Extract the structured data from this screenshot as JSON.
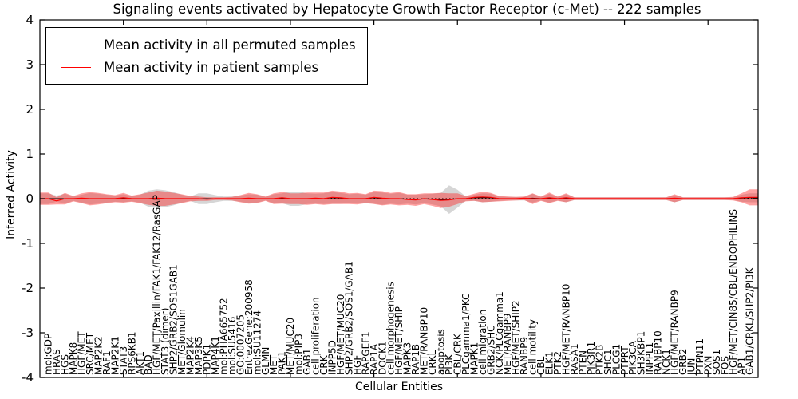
{
  "chart_data": {
    "type": "area",
    "title": "Signaling events activated by Hepatocyte Growth Factor Receptor (c-Met) -- 222 samples",
    "xlabel": "Cellular Entities",
    "ylabel": "Inferred Activity",
    "ylim": [
      -4,
      4
    ],
    "yticks": [
      "4",
      "3",
      "2",
      "1",
      "0",
      "-1",
      "-2",
      "-3",
      "-4"
    ],
    "grid": false,
    "zero_line": "dotted",
    "legend_position": "upper left",
    "categories": [
      "mol:GDP",
      "HRAS",
      "HGS",
      "MAPK8",
      "HGF/MET",
      "SRC/MET",
      "MAP2K2",
      "RAF1",
      "MAP2K1",
      "STAT3",
      "RPS6KB1",
      "AKT1",
      "BAD",
      "HGF/MET/Paxillin/FAK1/FAK12/RasGAP",
      "STAT3 (dimer)",
      "SHP2/GRB2/SOS1GAB1",
      "MET/Glomulin",
      "MAP2K4",
      "MAP3K5",
      "PDPK1",
      "MAP4K1",
      "mol:PHA665752",
      "mol:SU5416",
      "GO:0007205",
      "EntrezGene:200958",
      "mol:SU11274",
      "GLMN",
      "MET",
      "PAK1",
      "MET/MUC20",
      "mol:PIP3",
      "GAB1",
      "cell proliferation",
      "CRK",
      "INPP5D",
      "HGF/MET/MUC20",
      "SHP2/GRB2/SOS1/GAB1",
      "HGF",
      "RAPGEF1",
      "RAP1A",
      "DOCK1",
      "cell morphogenesis",
      "HGF/MET/SHIP",
      "MAPK3",
      "RAP1B",
      "MET/RANBP10",
      "CRKL",
      "apoptosis",
      "PI3K",
      "CBL/CRK",
      "PLCgamma1/PKC",
      "MAPK1",
      "cell migration",
      "GRB2/SHC",
      "NCK/PLCgamma1",
      "MET/RANBP9",
      "HGF/MET/SHIP2",
      "RANBP9",
      "cell motility",
      "CBL",
      "ELK1",
      "PTK2",
      "HGF/MET/RANBP10",
      "RASA1",
      "PTEN",
      "PIK3R1",
      "PTK2B",
      "SHC1",
      "PLCG1",
      "PTPRT",
      "PIK3CA",
      "SH3KBP1",
      "INPPL1",
      "RANBP10",
      "NCK1",
      "HGF/MET/RANBP9",
      "GRB2",
      "JUN",
      "PTPN11",
      "PXN",
      "SOS1",
      "FOS",
      "HGF/MET/CIN85/CBL/ENDOPHILINS",
      "AP1",
      "GAB1/CRKL/SHP2/PI3K"
    ],
    "series": [
      {
        "name": "Mean activity in all permuted samples",
        "color": "#000000",
        "band_color": "rgba(120,120,120,0.30)",
        "means": [
          0,
          0,
          0,
          0,
          0,
          0,
          0,
          0,
          0,
          0.01,
          0,
          0,
          0,
          0.01,
          0,
          0,
          0,
          0,
          0,
          0,
          0,
          0,
          0,
          0,
          0,
          0,
          0,
          0,
          0.01,
          0,
          0,
          0,
          0,
          0,
          0.02,
          0.01,
          0,
          0,
          0,
          0.02,
          0,
          0,
          0,
          -0.01,
          -0.02,
          0,
          -0.01,
          -0.02,
          -0.02,
          0,
          0,
          0.02,
          0.02,
          0.02,
          0,
          0,
          0,
          0,
          0.01,
          0,
          0.01,
          0,
          0.01,
          0,
          0,
          0,
          0,
          0,
          0,
          0,
          0,
          0,
          0,
          0,
          0,
          0,
          0,
          0,
          0,
          0,
          0,
          0,
          0,
          0.01,
          0.02
        ],
        "stds": [
          0.12,
          0.07,
          0.11,
          0.05,
          0.09,
          0.13,
          0.11,
          0.09,
          0.07,
          0.09,
          0.06,
          0.09,
          0.18,
          0.2,
          0.19,
          0.15,
          0.09,
          0.05,
          0.12,
          0.12,
          0.08,
          0.05,
          0.05,
          0.07,
          0.1,
          0.09,
          0.04,
          0.1,
          0.11,
          0.16,
          0.16,
          0.12,
          0.11,
          0.12,
          0.13,
          0.12,
          0.1,
          0.11,
          0.09,
          0.13,
          0.14,
          0.11,
          0.13,
          0.1,
          0.11,
          0.1,
          0.12,
          0.15,
          0.32,
          0.2,
          0.05,
          0.07,
          0.1,
          0.09,
          0.05,
          0.04,
          0.04,
          0.04,
          0.1,
          0.04,
          0.1,
          0.04,
          0.09,
          0.03,
          0.03,
          0.03,
          0.03,
          0.03,
          0.03,
          0.03,
          0.03,
          0.03,
          0.03,
          0.03,
          0.03,
          0.08,
          0.03,
          0.03,
          0.03,
          0.03,
          0.03,
          0.03,
          0.03,
          0.08,
          0.1
        ]
      },
      {
        "name": "Mean activity in patient samples",
        "color": "#ff0000",
        "band_color": "rgba(255,30,30,0.42)",
        "means": [
          0,
          -0.05,
          0,
          0,
          0.01,
          0,
          0,
          0,
          0,
          0.02,
          0,
          0,
          0,
          0.01,
          0,
          0,
          0,
          0,
          0,
          -0.01,
          0,
          0,
          0,
          0,
          0.01,
          0,
          0,
          0,
          0.02,
          0,
          0,
          0,
          0.01,
          0,
          0.03,
          0.02,
          0,
          0,
          0,
          0.03,
          0.01,
          0,
          0,
          -0.02,
          -0.03,
          0,
          -0.02,
          -0.04,
          -0.03,
          0,
          0,
          0.03,
          0.04,
          0.03,
          0,
          0,
          0,
          0.01,
          0,
          0,
          0.02,
          0,
          0.02,
          0,
          0,
          0,
          0,
          0,
          0,
          0,
          0,
          0,
          0,
          0,
          0,
          0.01,
          0,
          0,
          0,
          0,
          0,
          0,
          0,
          0.02,
          0.03
        ],
        "stds": [
          0.14,
          0.08,
          0.13,
          0.06,
          0.11,
          0.15,
          0.13,
          0.1,
          0.08,
          0.11,
          0.07,
          0.1,
          0.14,
          0.17,
          0.16,
          0.13,
          0.1,
          0.06,
          0.05,
          0.04,
          0.03,
          0.03,
          0.04,
          0.08,
          0.12,
          0.1,
          0.05,
          0.12,
          0.13,
          0.12,
          0.12,
          0.14,
          0.13,
          0.14,
          0.15,
          0.14,
          0.12,
          0.13,
          0.1,
          0.15,
          0.16,
          0.13,
          0.15,
          0.12,
          0.13,
          0.12,
          0.14,
          0.17,
          0.15,
          0.12,
          0.06,
          0.08,
          0.12,
          0.1,
          0.06,
          0.05,
          0.04,
          0.04,
          0.12,
          0.05,
          0.12,
          0.05,
          0.1,
          0.03,
          0.03,
          0.03,
          0.03,
          0.03,
          0.03,
          0.03,
          0.03,
          0.03,
          0.03,
          0.03,
          0.03,
          0.09,
          0.03,
          0.03,
          0.03,
          0.03,
          0.03,
          0.03,
          0.04,
          0.1,
          0.18
        ]
      }
    ]
  }
}
